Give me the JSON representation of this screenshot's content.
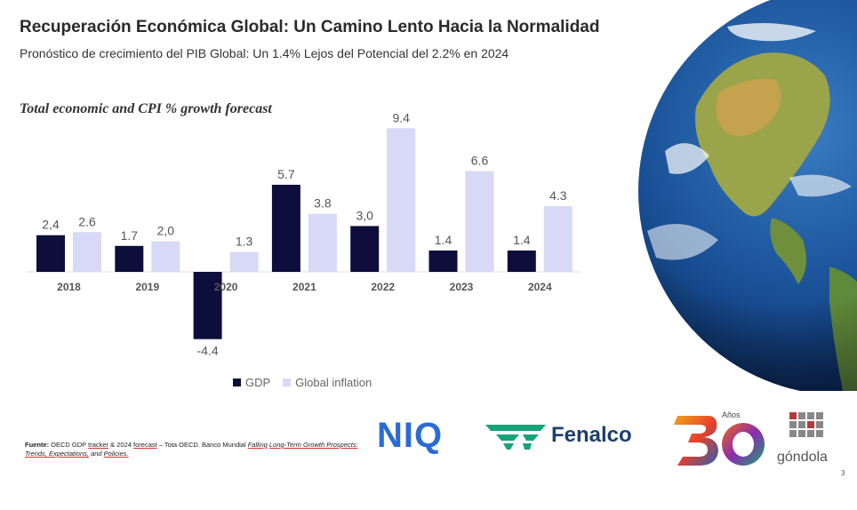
{
  "header": {
    "title": "Recuperación Económica Global: Un Camino Lento Hacia la Normalidad",
    "subtitle": "Pronóstico de crecimiento del PIB Global: Un 1.4% Lejos del Potencial del 2.2% en 2024"
  },
  "chart_data": {
    "type": "bar",
    "title": "Total economic and CPI % growth forecast",
    "categories": [
      "2018",
      "2019",
      "2020",
      "2021",
      "2022",
      "2023",
      "2024"
    ],
    "series": [
      {
        "name": "GDP",
        "color": "#0d0e3b",
        "values": [
          2.4,
          1.7,
          -4.4,
          5.7,
          3.0,
          1.4,
          1.4
        ],
        "labels": [
          "2,4",
          "1.7",
          "-4.4",
          "5.7",
          "3,0",
          "1.4",
          "1.4"
        ]
      },
      {
        "name": "Global inflation",
        "color": "#d7d9f6",
        "values": [
          2.6,
          2.0,
          1.3,
          3.8,
          9.4,
          6.6,
          4.3
        ],
        "labels": [
          "2.6",
          "2,0",
          "1.3",
          "3.8",
          "9.4",
          "6.6",
          "4.3"
        ]
      }
    ],
    "xlabel": "",
    "ylabel": "",
    "ylim": [
      -4.4,
      9.4
    ],
    "legend_position": "bottom"
  },
  "source": {
    "lead": "Fuente:",
    "seg1": " OECD GDP ",
    "tracker": "tracker",
    "seg2": " & 2024 ",
    "forecast": "forecast",
    "seg3": " – Tota OECD. Banco Mundial ",
    "falling": "Falling",
    "seg4": " ",
    "longterm": "Long-Term Growth Prospects: Trends, Expectations,",
    "seg5": " and ",
    "policies": "Policies."
  },
  "logos": {
    "niq": "NIQ",
    "fenalco": "Fenalco",
    "anos": "Años",
    "gondola": "góndola"
  },
  "page_number": "3"
}
